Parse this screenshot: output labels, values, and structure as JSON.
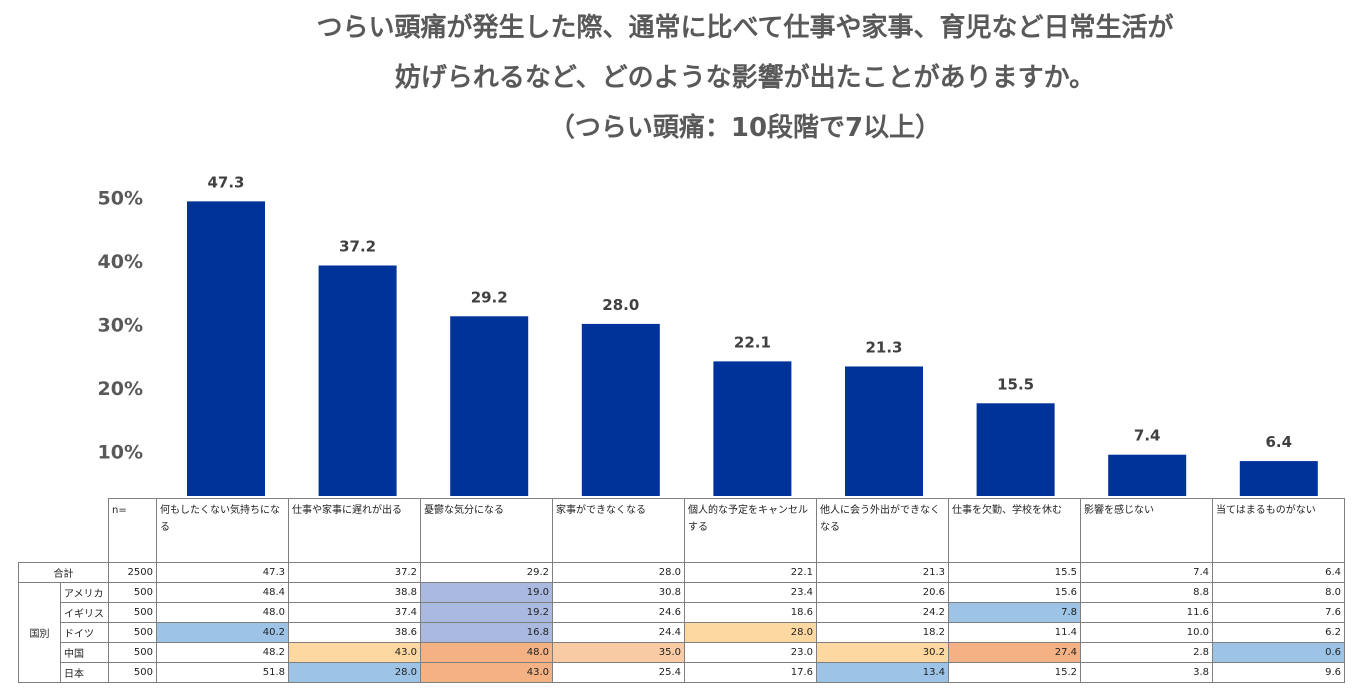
{
  "title_lines": [
    "つらい頭痛が発生した際、通常に比べて仕事や家事、育児など日常生活が",
    "妨げられるなど、どのような影響が出たことがありますか。",
    "（つらい頭痛：10段階で7以上）"
  ],
  "chart_data": {
    "type": "bar",
    "title": "つらい頭痛が発生した際、通常に比べて仕事や家事、育児など日常生活が妨げられるなど、どのような影響が出たことがありますか。（つらい頭痛：10段階で7以上）",
    "categories": [
      "何もしたくない気持ちになる",
      "仕事や家事に遅れが出る",
      "憂鬱な気分になる",
      "家事ができなくなる",
      "個人的な予定をキャンセルする",
      "他人に会う外出ができなくなる",
      "仕事を欠勤、学校を休む",
      "影響を感じない",
      "当てはまるものがない"
    ],
    "values": [
      47.3,
      37.2,
      29.2,
      28.0,
      22.1,
      21.3,
      15.5,
      7.4,
      6.4
    ],
    "value_labels": [
      "47.3",
      "37.2",
      "29.2",
      "28.0",
      "22.1",
      "21.3",
      "15.5",
      "7.4",
      "6.4"
    ],
    "ytick_labels": [
      "10%",
      "20%",
      "30%",
      "40%",
      "50%"
    ],
    "ytick_values": [
      10,
      20,
      30,
      40,
      50
    ],
    "bar_color": "#003399",
    "grid": false
  },
  "table": {
    "n_label": "n=",
    "group_label": "国別",
    "headers": [
      "何もしたくない気持ちになる",
      "仕事や家事に遅れが出る",
      "憂鬱な気分になる",
      "家事ができなくなる",
      "個人的な予定をキャンセルする",
      "他人に会う外出ができなくなる",
      "仕事を欠勤、学校を休む",
      "影響を感じない",
      "当てはまるものがない"
    ],
    "total_row": {
      "label": "合計",
      "n": "2500",
      "values": [
        "47.3",
        "37.2",
        "29.2",
        "28.0",
        "22.1",
        "21.3",
        "15.5",
        "7.4",
        "6.4"
      ]
    },
    "country_rows": [
      {
        "label": "アメリカ",
        "n": "500",
        "values": [
          "48.4",
          "38.8",
          "19.0",
          "30.8",
          "23.4",
          "20.6",
          "15.6",
          "8.8",
          "8.0"
        ],
        "highlights": [
          "",
          "",
          "lav",
          "",
          "",
          "",
          "",
          "",
          ""
        ]
      },
      {
        "label": "イギリス",
        "n": "500",
        "values": [
          "48.0",
          "37.4",
          "19.2",
          "24.6",
          "18.6",
          "24.2",
          "7.8",
          "11.6",
          "7.6"
        ],
        "highlights": [
          "",
          "",
          "lav",
          "",
          "",
          "",
          "blue",
          "",
          ""
        ]
      },
      {
        "label": "ドイツ",
        "n": "500",
        "values": [
          "40.2",
          "38.6",
          "16.8",
          "24.4",
          "28.0",
          "18.2",
          "11.4",
          "10.0",
          "6.2"
        ],
        "highlights": [
          "blue",
          "",
          "lav",
          "",
          "yellow",
          "",
          "",
          "",
          ""
        ]
      },
      {
        "label": "中国",
        "n": "500",
        "values": [
          "48.2",
          "43.0",
          "48.0",
          "35.0",
          "23.0",
          "30.2",
          "27.4",
          "2.8",
          "0.6"
        ],
        "highlights": [
          "",
          "yellow",
          "orange",
          "peach",
          "",
          "yellow",
          "orange",
          "",
          "blue"
        ]
      },
      {
        "label": "日本",
        "n": "500",
        "values": [
          "51.8",
          "28.0",
          "43.0",
          "25.4",
          "17.6",
          "13.4",
          "15.2",
          "3.8",
          "9.6"
        ],
        "highlights": [
          "",
          "blue",
          "orange",
          "",
          "",
          "blue",
          "",
          "",
          ""
        ]
      }
    ]
  },
  "colors": {
    "bar": "#003399",
    "highlight_blue": "#9dc3e6",
    "highlight_lavender": "#a9b9e0",
    "highlight_orange": "#f4b183",
    "highlight_peach": "#f8cba4",
    "highlight_yellow": "#fdd8a0"
  }
}
